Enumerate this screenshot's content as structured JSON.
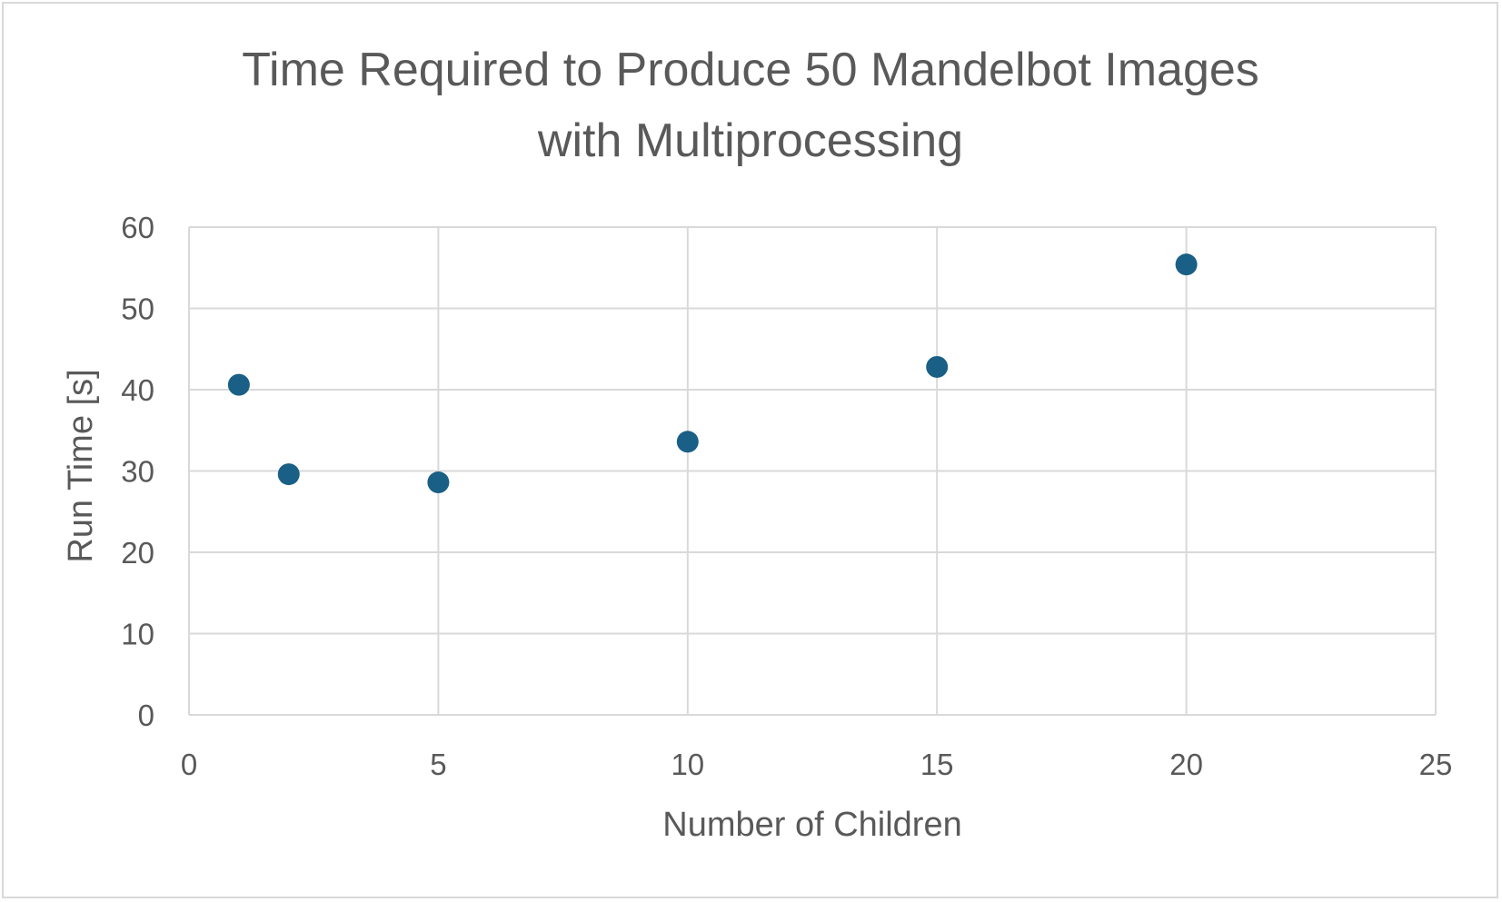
{
  "chart_data": {
    "type": "scatter",
    "title_lines": [
      "Time Required to Produce 50 Mandelbot Images",
      "with Multiprocessing"
    ],
    "xlabel": "Number of Children",
    "ylabel": "Run Time [s]",
    "xlim": [
      0,
      25
    ],
    "ylim": [
      0,
      60
    ],
    "xticks": [
      0,
      5,
      10,
      15,
      20,
      25
    ],
    "yticks": [
      0,
      10,
      20,
      30,
      40,
      50,
      60
    ],
    "grid": true,
    "legend": "none",
    "series": [
      {
        "color": "#1a5f85",
        "points": [
          {
            "x": 1,
            "y": 40.6
          },
          {
            "x": 2,
            "y": 29.6
          },
          {
            "x": 5,
            "y": 28.6
          },
          {
            "x": 10,
            "y": 33.6
          },
          {
            "x": 15,
            "y": 42.8
          },
          {
            "x": 20,
            "y": 55.4
          }
        ]
      }
    ],
    "colors": {
      "grid": "#d9d9d9",
      "text": "#595959",
      "marker": "#1a5f85"
    }
  }
}
